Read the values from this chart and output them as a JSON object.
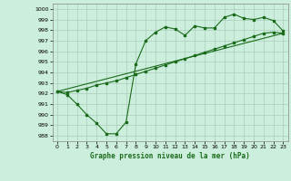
{
  "title": "Graphe pression niveau de la mer (hPa)",
  "bg_color": "#cceedd",
  "grid_color": "#aaccbb",
  "line_color": "#1a6b1a",
  "xlim": [
    -0.5,
    23.5
  ],
  "ylim": [
    987.5,
    1000.5
  ],
  "yticks": [
    988,
    989,
    990,
    991,
    992,
    993,
    994,
    995,
    996,
    997,
    998,
    999,
    1000
  ],
  "xticks": [
    0,
    1,
    2,
    3,
    4,
    5,
    6,
    7,
    8,
    9,
    10,
    11,
    12,
    13,
    14,
    15,
    16,
    17,
    18,
    19,
    20,
    21,
    22,
    23
  ],
  "series1_x": [
    0,
    1,
    2,
    3,
    4,
    5,
    6,
    7,
    8,
    9,
    10,
    11,
    12,
    13,
    14,
    15,
    16,
    17,
    18,
    19,
    20,
    21,
    22,
    23
  ],
  "series1_y": [
    992.2,
    991.9,
    991.0,
    990.0,
    989.2,
    988.2,
    988.2,
    989.3,
    994.8,
    997.0,
    997.8,
    998.3,
    998.1,
    997.5,
    998.4,
    998.2,
    998.2,
    999.2,
    999.5,
    999.1,
    999.0,
    999.2,
    998.9,
    997.9
  ],
  "series2_x": [
    0,
    1,
    2,
    3,
    4,
    5,
    6,
    7,
    8,
    9,
    10,
    11,
    12,
    13,
    14,
    15,
    16,
    17,
    18,
    19,
    20,
    21,
    22,
    23
  ],
  "series2_y": [
    992.2,
    992.1,
    992.3,
    992.5,
    992.8,
    993.0,
    993.2,
    993.5,
    993.8,
    994.1,
    994.4,
    994.7,
    995.0,
    995.3,
    995.6,
    995.9,
    996.2,
    996.5,
    996.8,
    997.1,
    997.4,
    997.7,
    997.8,
    997.7
  ],
  "series3_x": [
    0,
    23
  ],
  "series3_y": [
    992.2,
    997.7
  ]
}
